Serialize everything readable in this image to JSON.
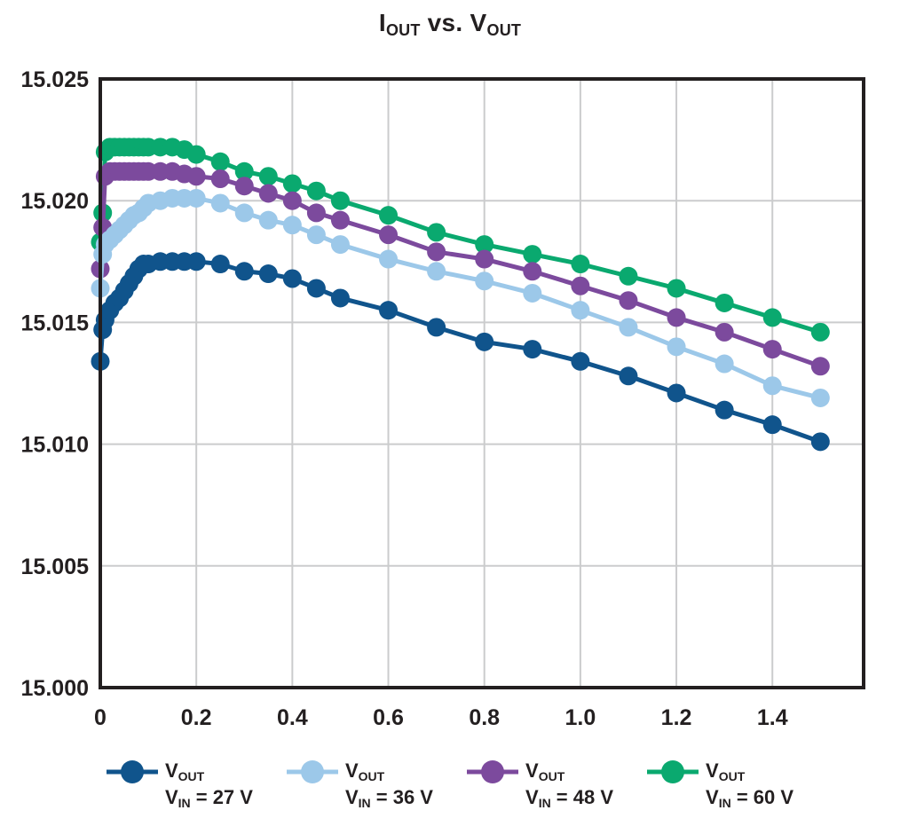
{
  "page": {
    "background": "#ffffff"
  },
  "title": {
    "segments": [
      {
        "text": "I",
        "sub": false
      },
      {
        "text": "OUT",
        "sub": true
      },
      {
        "text": " vs. V",
        "sub": false
      },
      {
        "text": "OUT",
        "sub": true
      }
    ]
  },
  "colors": {
    "frame": "#231f20",
    "grid": "#cbcccd",
    "text": "#231f20",
    "vin27": "#10548c",
    "vin36": "#9cc8e9",
    "vin48": "#7c4a9d",
    "vin60": "#0aa96f"
  },
  "axes": {
    "x": {
      "ticks": [
        "0",
        "0.2",
        "0.4",
        "0.6",
        "0.8",
        "1.0",
        "1.2",
        "1.4"
      ],
      "tick_values": [
        0,
        0.2,
        0.4,
        0.6,
        0.8,
        1.0,
        1.2,
        1.4
      ]
    },
    "y": {
      "ticks": [
        "15.000",
        "15.005",
        "15.010",
        "15.015",
        "15.020",
        "15.025"
      ],
      "tick_values": [
        15.0,
        15.005,
        15.01,
        15.015,
        15.02,
        15.025
      ]
    }
  },
  "legend": {
    "entries": [
      {
        "id": "vin-27v",
        "color": "#10548c",
        "line1": [
          {
            "text": "V",
            "sub": false
          },
          {
            "text": "OUT",
            "sub": true
          }
        ],
        "line2": [
          {
            "text": "V",
            "sub": false
          },
          {
            "text": "IN",
            "sub": true
          },
          {
            "text": " = 27 V",
            "sub": false
          }
        ]
      },
      {
        "id": "vin-36v",
        "color": "#9cc8e9",
        "line1": [
          {
            "text": "V",
            "sub": false
          },
          {
            "text": "OUT",
            "sub": true
          }
        ],
        "line2": [
          {
            "text": "V",
            "sub": false
          },
          {
            "text": "IN",
            "sub": true
          },
          {
            "text": " = 36 V",
            "sub": false
          }
        ]
      },
      {
        "id": "vin-48v",
        "color": "#7c4a9d",
        "line1": [
          {
            "text": "V",
            "sub": false
          },
          {
            "text": "OUT",
            "sub": true
          }
        ],
        "line2": [
          {
            "text": "V",
            "sub": false
          },
          {
            "text": "IN",
            "sub": true
          },
          {
            "text": " = 48 V",
            "sub": false
          }
        ]
      },
      {
        "id": "vin-60v",
        "color": "#0aa96f",
        "line1": [
          {
            "text": "V",
            "sub": false
          },
          {
            "text": "OUT",
            "sub": true
          }
        ],
        "line2": [
          {
            "text": "V",
            "sub": false
          },
          {
            "text": "IN",
            "sub": true
          },
          {
            "text": " = 60 V",
            "sub": false
          }
        ]
      }
    ]
  },
  "chart_data": {
    "type": "line",
    "title": "IOUT vs. VOUT",
    "xlabel": "",
    "ylabel": "",
    "xlim": [
      0,
      1.59
    ],
    "ylim": [
      15.0,
      15.025
    ],
    "grid": true,
    "legend_position": "bottom",
    "marker": "circle",
    "x": [
      0,
      0.005,
      0.01,
      0.02,
      0.03,
      0.04,
      0.05,
      0.06,
      0.07,
      0.08,
      0.09,
      0.1,
      0.125,
      0.15,
      0.175,
      0.2,
      0.25,
      0.3,
      0.35,
      0.4,
      0.45,
      0.5,
      0.6,
      0.7,
      0.8,
      0.9,
      1.0,
      1.1,
      1.2,
      1.3,
      1.4,
      1.5
    ],
    "series": [
      {
        "name": "VOUT VIN = 60 V",
        "color": "#0aa96f",
        "values": [
          15.0183,
          15.0195,
          15.022,
          15.0222,
          15.0222,
          15.0222,
          15.0222,
          15.0222,
          15.0222,
          15.0222,
          15.0222,
          15.0222,
          15.0222,
          15.0222,
          15.0221,
          15.0219,
          15.0216,
          15.0212,
          15.021,
          15.0207,
          15.0204,
          15.02,
          15.0194,
          15.0187,
          15.0182,
          15.0178,
          15.0174,
          15.0169,
          15.0164,
          15.0158,
          15.0152,
          15.0146
        ]
      },
      {
        "name": "VOUT VIN = 48 V",
        "color": "#7c4a9d",
        "values": [
          15.0172,
          15.0189,
          15.021,
          15.0212,
          15.0212,
          15.0212,
          15.0212,
          15.0212,
          15.0212,
          15.0212,
          15.0212,
          15.0212,
          15.0212,
          15.0212,
          15.0211,
          15.021,
          15.0209,
          15.0206,
          15.0203,
          15.02,
          15.0195,
          15.0192,
          15.0186,
          15.0179,
          15.0176,
          15.0171,
          15.0165,
          15.0159,
          15.0152,
          15.0146,
          15.0139,
          15.0132
        ]
      },
      {
        "name": "VOUT VIN = 36 V",
        "color": "#9cc8e9",
        "values": [
          15.0164,
          15.0178,
          15.0182,
          15.0184,
          15.0186,
          15.0188,
          15.019,
          15.0192,
          15.0194,
          15.0195,
          15.0197,
          15.0199,
          15.02,
          15.0201,
          15.0201,
          15.0201,
          15.0199,
          15.0195,
          15.0192,
          15.019,
          15.0186,
          15.0182,
          15.0176,
          15.0171,
          15.0167,
          15.0162,
          15.0155,
          15.0148,
          15.014,
          15.0133,
          15.0124,
          15.0119
        ]
      },
      {
        "name": "VOUT VIN = 27 V",
        "color": "#10548c",
        "values": [
          15.0134,
          15.0147,
          15.0151,
          15.0155,
          15.0158,
          15.016,
          15.0163,
          15.0166,
          15.0169,
          15.0172,
          15.0174,
          15.0174,
          15.0175,
          15.0175,
          15.0175,
          15.0175,
          15.0174,
          15.0171,
          15.017,
          15.0168,
          15.0164,
          15.016,
          15.0155,
          15.0148,
          15.0142,
          15.0139,
          15.0134,
          15.0128,
          15.0121,
          15.0114,
          15.0108,
          15.0101
        ]
      }
    ]
  }
}
